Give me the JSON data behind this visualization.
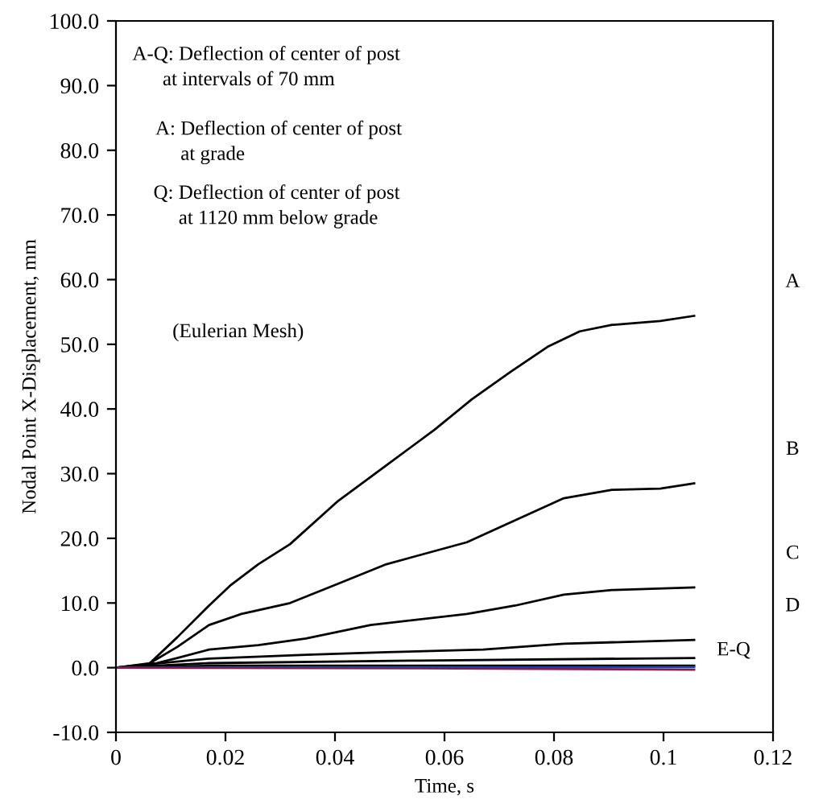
{
  "chart_data": {
    "type": "line",
    "xlabel": "Time, s",
    "ylabel": "Nodal Point X-Displacement, mm",
    "xlim": [
      0,
      0.12
    ],
    "xticks": [
      {
        "value": 0,
        "label": "0"
      },
      {
        "value": 0.02,
        "label": "0.02"
      },
      {
        "value": 0.04,
        "label": "0.04"
      },
      {
        "value": 0.06,
        "label": "0.06"
      },
      {
        "value": 0.08,
        "label": "0.08"
      },
      {
        "value": 0.1,
        "label": "0.1"
      },
      {
        "value": 0.12,
        "label": "0.12"
      }
    ],
    "ylim": [
      -10,
      100
    ],
    "yticks": [
      {
        "value": -10,
        "label": "-10.0"
      },
      {
        "value": 0,
        "label": "0.0"
      },
      {
        "value": 10,
        "label": "10.0"
      },
      {
        "value": 20,
        "label": "20.0"
      },
      {
        "value": 30,
        "label": "30.0"
      },
      {
        "value": 40,
        "label": "40.0"
      },
      {
        "value": 50,
        "label": "50.0"
      },
      {
        "value": 60,
        "label": "60.0"
      },
      {
        "value": 70,
        "label": "70.0"
      },
      {
        "value": 80,
        "label": "80.0"
      },
      {
        "value": 90,
        "label": "90.0"
      },
      {
        "value": 100,
        "label": "100.0"
      }
    ],
    "grid": false,
    "legend": false,
    "marker": "none",
    "line_style": "solid",
    "series": [
      {
        "name": "A",
        "color": "#000000",
        "x": [
          0,
          0.0053,
          0.0112,
          0.017,
          0.021,
          0.026,
          0.0318,
          0.0406,
          0.0494,
          0.0582,
          0.065,
          0.072,
          0.0788,
          0.0847,
          0.0906,
          0.0994,
          0.1056
        ],
        "values": [
          0,
          0,
          4.7,
          9.6,
          12.8,
          16.0,
          19.1,
          25.8,
          31.3,
          36.8,
          41.5,
          45.7,
          49.6,
          52.0,
          53.0,
          53.6,
          54.4
        ]
      },
      {
        "name": "B",
        "color": "#000000",
        "x": [
          0,
          0.0062,
          0.0112,
          0.017,
          0.0229,
          0.0318,
          0.0406,
          0.0494,
          0.0641,
          0.0729,
          0.0818,
          0.0906,
          0.0994,
          0.1056
        ],
        "values": [
          0,
          0.7,
          3.2,
          6.6,
          8.3,
          10.0,
          13.0,
          16.0,
          19.4,
          22.8,
          26.2,
          27.5,
          27.7,
          28.5
        ]
      },
      {
        "name": "C",
        "color": "#000000",
        "x": [
          0,
          0.0074,
          0.0112,
          0.017,
          0.026,
          0.0347,
          0.0465,
          0.0641,
          0.0729,
          0.0818,
          0.0906,
          0.1056
        ],
        "values": [
          0,
          0.7,
          1.5,
          2.8,
          3.5,
          4.5,
          6.6,
          8.3,
          9.6,
          11.3,
          12.0,
          12.4
        ]
      },
      {
        "name": "D",
        "color": "#000000",
        "x": [
          0,
          0.008,
          0.017,
          0.0347,
          0.0494,
          0.0671,
          0.0818,
          0.1056
        ],
        "values": [
          0,
          0.7,
          1.4,
          2.0,
          2.4,
          2.8,
          3.7,
          4.3
        ]
      },
      {
        "color": "#000000",
        "x": [
          0,
          0.017,
          0.0553,
          0.1056
        ],
        "values": [
          0,
          0.7,
          1.1,
          1.5
        ]
      },
      {
        "color": "#000000",
        "x": [
          0,
          0.017,
          0.0553,
          0.1056
        ],
        "values": [
          0,
          0.3,
          0.3,
          0.3
        ]
      },
      {
        "color": "#1f3fbf",
        "x": [
          0,
          0.0553,
          0.1056
        ],
        "values": [
          0,
          0,
          0.1
        ]
      },
      {
        "color": "#7f1f3f",
        "x": [
          0,
          0.0553,
          0.1056
        ],
        "values": [
          0,
          -0.1,
          -0.3
        ]
      }
    ],
    "annotations": [
      "A-Q: Deflection of center of post\n      at intervals of 70 mm",
      "A: Deflection of center of post\n     at grade",
      "Q: Deflection of center of post\n     at 1120 mm below grade",
      "(Eulerian Mesh)",
      "E-Q"
    ]
  }
}
